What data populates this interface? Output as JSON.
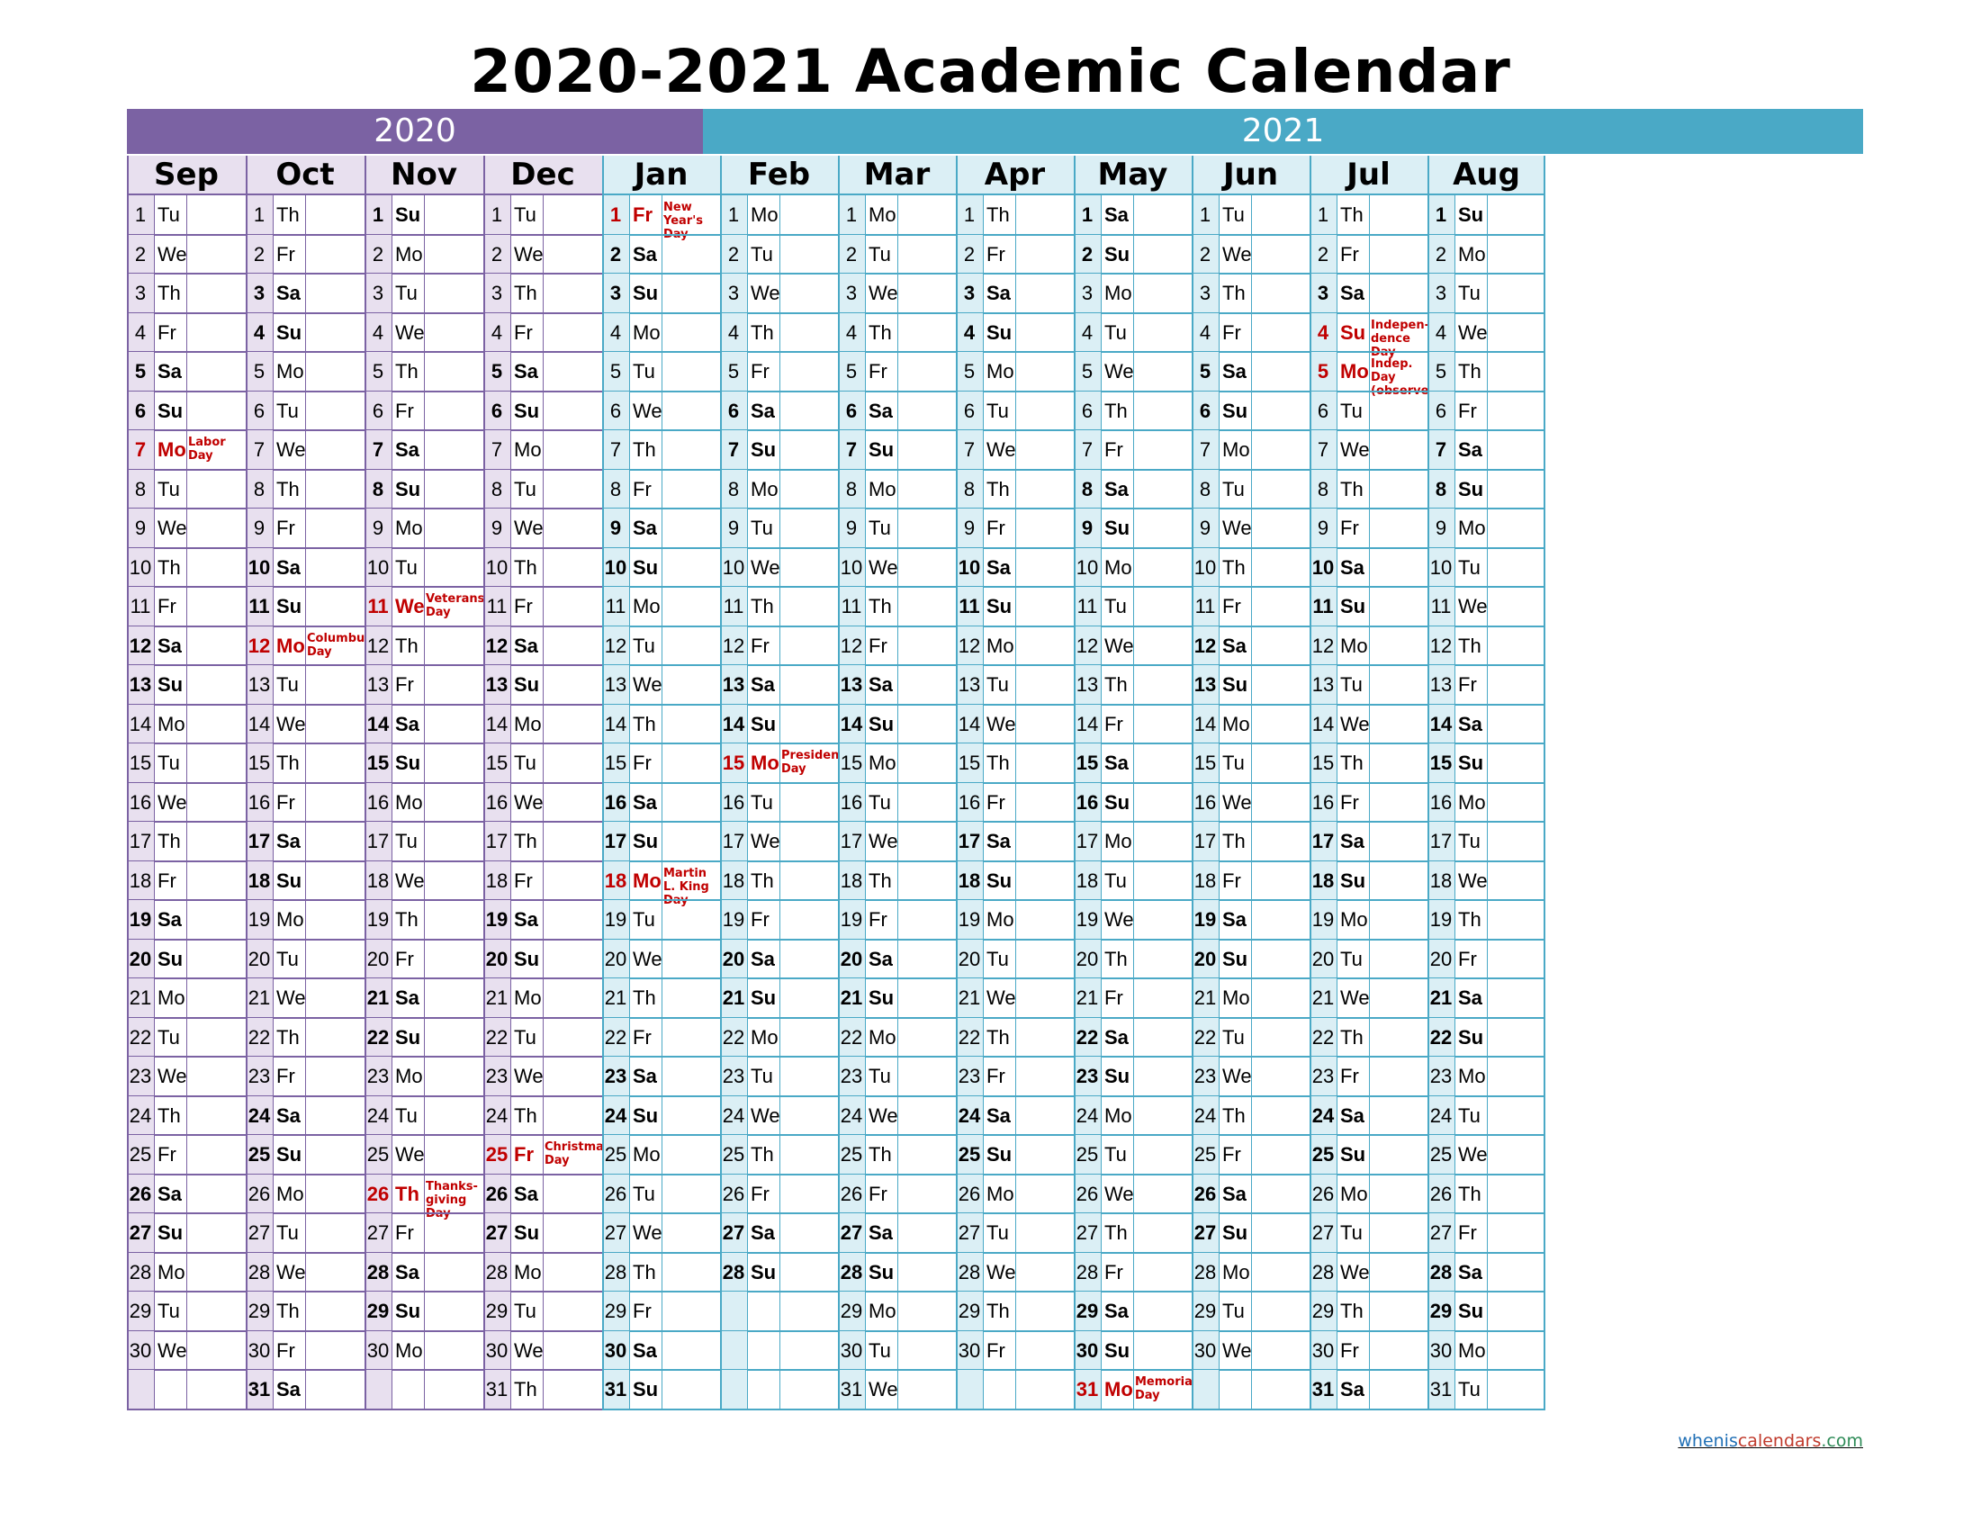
{
  "title": "2020-2021 Academic Calendar",
  "years": [
    "2020",
    "2021"
  ],
  "colors": {
    "purple": "#7b62a3",
    "teal": "#4aa9c6",
    "purple_light": "#e8e0ef",
    "teal_light": "#dbeff5",
    "holiday_red": "#c00000"
  },
  "weekday_abbr": [
    "Su",
    "Mo",
    "Tu",
    "We",
    "Th",
    "Fr",
    "Sa"
  ],
  "months": [
    {
      "name": "Sep",
      "year": 2020,
      "month_index": 8,
      "days": 30
    },
    {
      "name": "Oct",
      "year": 2020,
      "month_index": 9,
      "days": 31
    },
    {
      "name": "Nov",
      "year": 2020,
      "month_index": 10,
      "days": 30
    },
    {
      "name": "Dec",
      "year": 2020,
      "month_index": 11,
      "days": 31
    },
    {
      "name": "Jan",
      "year": 2021,
      "month_index": 0,
      "days": 31
    },
    {
      "name": "Feb",
      "year": 2021,
      "month_index": 1,
      "days": 28
    },
    {
      "name": "Mar",
      "year": 2021,
      "month_index": 2,
      "days": 31
    },
    {
      "name": "Apr",
      "year": 2021,
      "month_index": 3,
      "days": 30
    },
    {
      "name": "May",
      "year": 2021,
      "month_index": 4,
      "days": 31
    },
    {
      "name": "Jun",
      "year": 2021,
      "month_index": 5,
      "days": 30
    },
    {
      "name": "Jul",
      "year": 2021,
      "month_index": 6,
      "days": 31
    },
    {
      "name": "Aug",
      "year": 2021,
      "month_index": 7,
      "days": 31
    }
  ],
  "holidays": [
    {
      "month": "Sep",
      "day": 7,
      "label": "Labor Day"
    },
    {
      "month": "Oct",
      "day": 12,
      "label": "Columbus Day"
    },
    {
      "month": "Nov",
      "day": 11,
      "label": "Veterans Day"
    },
    {
      "month": "Nov",
      "day": 26,
      "label": "Thanks-giving Day"
    },
    {
      "month": "Dec",
      "day": 25,
      "label": "Christmas Day"
    },
    {
      "month": "Jan",
      "day": 1,
      "label": "New Year's Day"
    },
    {
      "month": "Jan",
      "day": 18,
      "label": "Martin L. King Day"
    },
    {
      "month": "Feb",
      "day": 15,
      "label": "Presidents' Day"
    },
    {
      "month": "May",
      "day": 31,
      "label": "Memorial Day"
    },
    {
      "month": "Jul",
      "day": 4,
      "label": "Indepen-dence Day"
    },
    {
      "month": "Jul",
      "day": 5,
      "label": "Indep. Day (observed)"
    }
  ],
  "footer": {
    "part1": "whenis",
    "part2": "calendars",
    "part3": ".com"
  }
}
